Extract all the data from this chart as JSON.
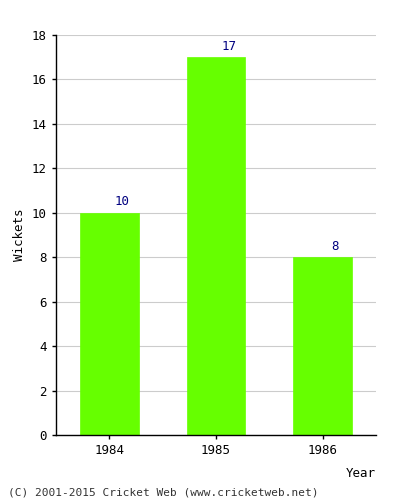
{
  "categories": [
    "1984",
    "1985",
    "1986"
  ],
  "values": [
    10,
    17,
    8
  ],
  "bar_color": "#66ff00",
  "bar_edgecolor": "#66ff00",
  "xlabel": "Year",
  "ylabel": "Wickets",
  "ylim": [
    0,
    18
  ],
  "yticks": [
    0,
    2,
    4,
    6,
    8,
    10,
    12,
    14,
    16,
    18
  ],
  "label_color": "#000080",
  "label_fontsize": 9,
  "axis_label_fontsize": 9,
  "tick_fontsize": 9,
  "grid_color": "#cccccc",
  "background_color": "#ffffff",
  "footer_text": "(C) 2001-2015 Cricket Web (www.cricketweb.net)",
  "footer_fontsize": 8,
  "spine_color": "#000000",
  "bar_width": 0.55
}
